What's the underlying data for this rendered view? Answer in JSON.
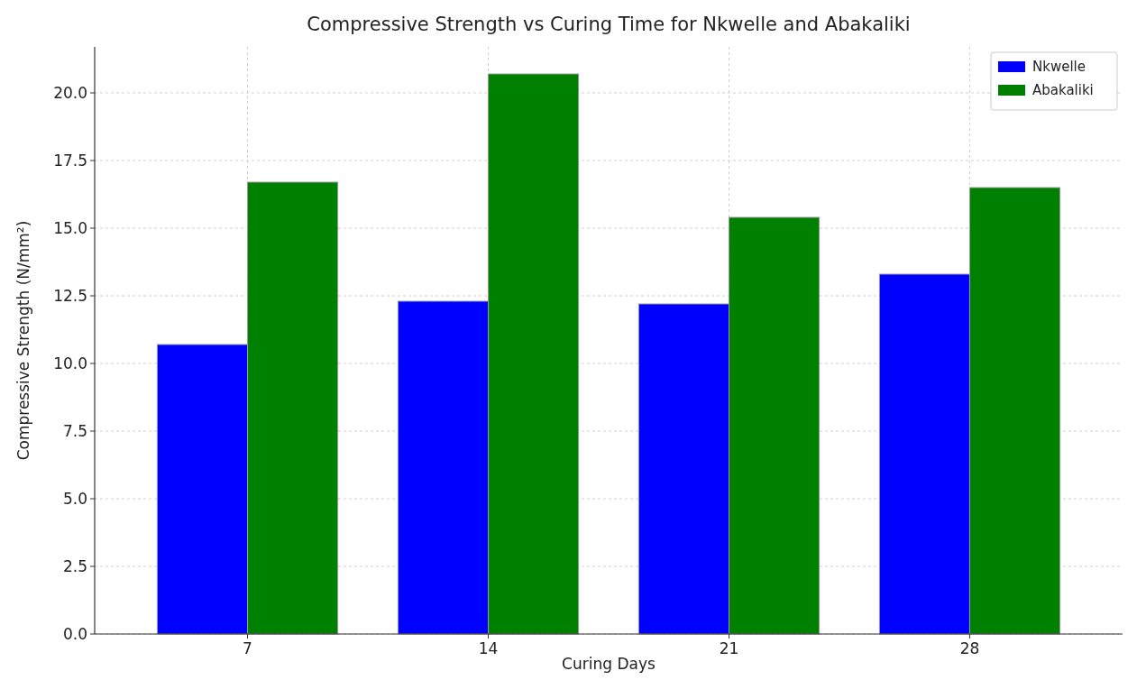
{
  "chart_data": {
    "type": "bar",
    "title": "Compressive Strength vs Curing Time for Nkwelle and Abakaliki",
    "xlabel": "Curing Days",
    "ylabel": "Compressive Strength (N/mm²)",
    "categories": [
      "7",
      "14",
      "21",
      "28"
    ],
    "series": [
      {
        "name": "Nkwelle",
        "color": "#0000ff",
        "values": [
          10.7,
          12.3,
          12.2,
          13.3
        ]
      },
      {
        "name": "Abakaliki",
        "color": "#008000",
        "values": [
          16.7,
          20.7,
          15.4,
          16.5
        ]
      }
    ],
    "ylim": [
      0,
      21.7
    ],
    "yticks": [
      {
        "value": 0,
        "label": "0.0"
      },
      2.5,
      {
        "value": 5,
        "label": "5.0"
      },
      7.5,
      {
        "value": 10,
        "label": "10.0"
      },
      12.5,
      {
        "value": 15,
        "label": "15.0"
      },
      17.5,
      {
        "value": 20,
        "label": "20.0"
      }
    ],
    "grid": true,
    "legend": "top right"
  }
}
